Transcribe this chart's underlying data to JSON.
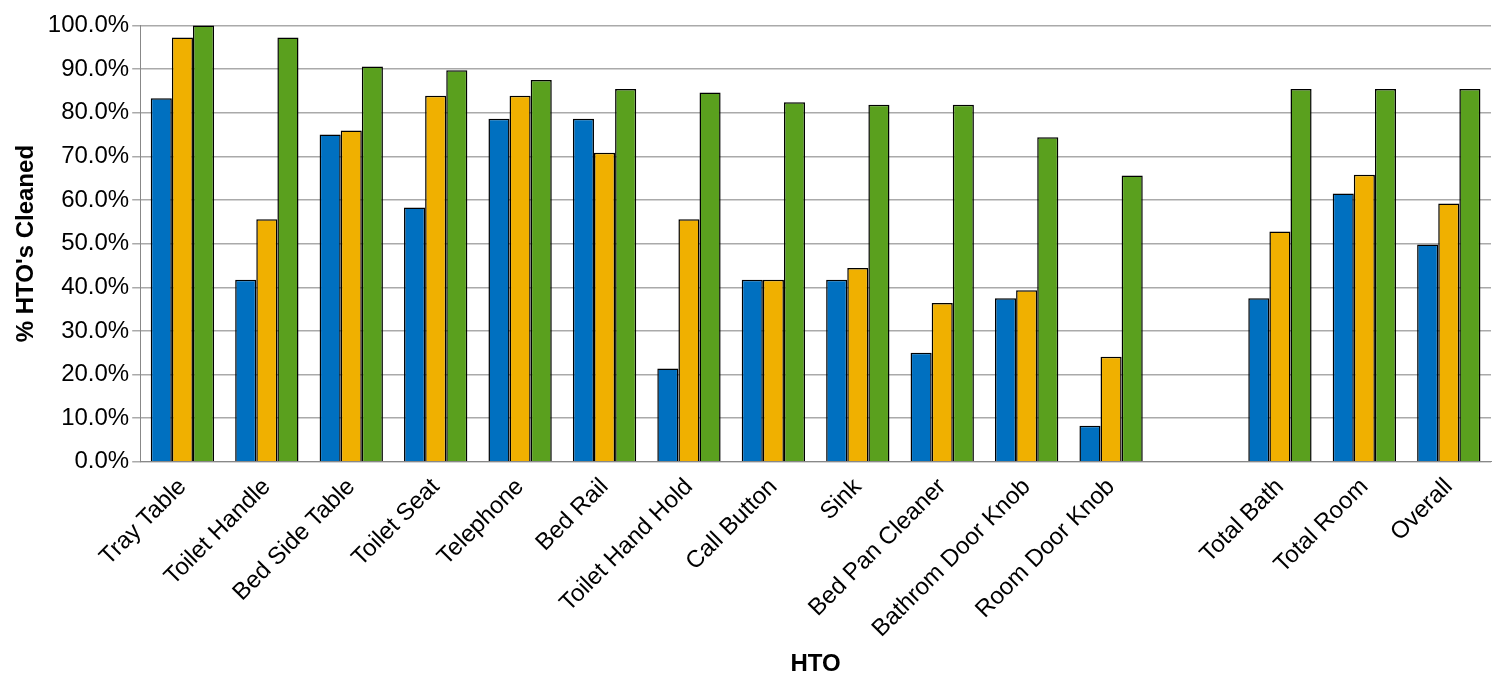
{
  "chart_data": {
    "type": "bar",
    "xlabel": "HTO",
    "ylabel": "% HTO's Cleaned",
    "categories": [
      "Tray Table",
      "Toilet Handle",
      "Bed Side Table",
      "Toilet Seat",
      "Telephone",
      "Bed Rail",
      "Toilet Hand Hold",
      "Call Button",
      "Sink",
      "Bed Pan Cleaner",
      "Bathrom Door Knob",
      "Room Door Knob",
      null,
      "Total Bath",
      "Total Room",
      "Overall"
    ],
    "series": [
      {
        "color": "#0070c0",
        "values": [
          83.3,
          41.7,
          75,
          58.3,
          78.6,
          78.6,
          21.4,
          41.7,
          41.7,
          25,
          37.5,
          8.3,
          null,
          37.5,
          61.5,
          49.8
        ]
      },
      {
        "color": "#f0b000",
        "values": [
          97.2,
          55.6,
          75.9,
          83.9,
          83.9,
          70.8,
          55.6,
          41.7,
          44.4,
          36.4,
          39.3,
          24.1,
          null,
          52.8,
          65.8,
          59.2
        ]
      },
      {
        "color": "#5aa01e",
        "values": [
          100,
          97.2,
          90.6,
          89.7,
          87.5,
          85.4,
          84.6,
          82.4,
          81.8,
          81.8,
          74.4,
          65.6,
          null,
          85.4,
          85.4,
          85.4
        ]
      }
    ],
    "ylim": [
      0,
      100
    ],
    "yticks": [
      {
        "value": 0,
        "label": "0.0%"
      },
      {
        "value": 10,
        "label": "10.0%"
      },
      {
        "value": 20,
        "label": "20.0%"
      },
      {
        "value": 30,
        "label": "30.0%"
      },
      {
        "value": 40,
        "label": "40.0%"
      },
      {
        "value": 50,
        "label": "50.0%"
      },
      {
        "value": 60,
        "label": "60.0%"
      },
      {
        "value": 70,
        "label": "70.0%"
      },
      {
        "value": 80,
        "label": "80.0%"
      },
      {
        "value": 90,
        "label": "90.0%"
      },
      {
        "value": 100,
        "label": "100.0%"
      }
    ],
    "grid": "y",
    "legend": false
  }
}
